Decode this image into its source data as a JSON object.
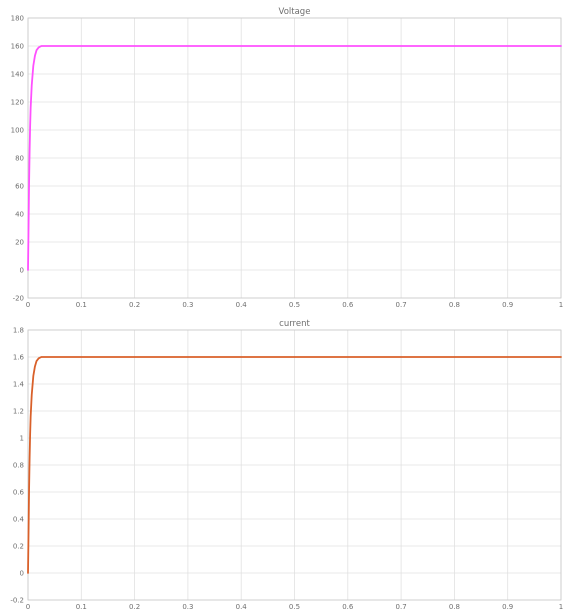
{
  "chart_data": [
    {
      "type": "line",
      "title": "Voltage",
      "xlabel": "",
      "ylabel": "",
      "xlim": [
        0,
        1
      ],
      "ylim": [
        -20,
        180
      ],
      "xticks": [
        0,
        0.1,
        0.2,
        0.3,
        0.4,
        0.5,
        0.6,
        0.7,
        0.8,
        0.9,
        1
      ],
      "xtick_labels": [
        "0",
        "0.1",
        "0.2",
        "0.3",
        "0.4",
        "0.5",
        "0.6",
        "0.7",
        "0.8",
        "0.9",
        "1"
      ],
      "yticks": [
        -20,
        0,
        20,
        40,
        60,
        80,
        100,
        120,
        140,
        160,
        180
      ],
      "ytick_labels": [
        "-20",
        "0",
        "20",
        "40",
        "60",
        "80",
        "100",
        "120",
        "140",
        "160",
        "180"
      ],
      "grid": true,
      "color": "#ff50ff",
      "series": [
        {
          "x": [
            0,
            0.001,
            0.002,
            0.003,
            0.004,
            0.005,
            0.007,
            0.01,
            0.013,
            0.016,
            0.02,
            0.025,
            0.03,
            0.04,
            0.05,
            0.1,
            0.2,
            0.3,
            0.4,
            0.5,
            0.6,
            0.7,
            0.8,
            0.9,
            1
          ],
          "y": [
            0,
            30,
            62,
            85,
            103,
            116,
            132,
            146,
            153,
            157,
            159,
            160,
            160,
            160,
            160,
            160,
            160,
            160,
            160,
            160,
            160,
            160,
            160,
            160,
            160
          ]
        }
      ]
    },
    {
      "type": "line",
      "title": "current",
      "xlabel": "",
      "ylabel": "",
      "xlim": [
        0,
        1
      ],
      "ylim": [
        -0.2,
        1.8
      ],
      "xticks": [
        0,
        0.1,
        0.2,
        0.3,
        0.4,
        0.5,
        0.6,
        0.7,
        0.8,
        0.9,
        1
      ],
      "xtick_labels": [
        "0",
        "0.1",
        "0.2",
        "0.3",
        "0.4",
        "0.5",
        "0.6",
        "0.7",
        "0.8",
        "0.9",
        "1"
      ],
      "yticks": [
        -0.2,
        0,
        0.2,
        0.4,
        0.6,
        0.8,
        1,
        1.2,
        1.4,
        1.6,
        1.8
      ],
      "ytick_labels": [
        "-0.2",
        "0",
        "0.2",
        "0.4",
        "0.6",
        "0.8",
        "1",
        "1.2",
        "1.4",
        "1.6",
        "1.8"
      ],
      "grid": true,
      "color": "#d9602a",
      "series": [
        {
          "x": [
            0,
            0.001,
            0.002,
            0.003,
            0.004,
            0.005,
            0.007,
            0.01,
            0.013,
            0.016,
            0.02,
            0.025,
            0.03,
            0.04,
            0.05,
            0.1,
            0.2,
            0.3,
            0.4,
            0.5,
            0.6,
            0.7,
            0.8,
            0.9,
            1
          ],
          "y": [
            0,
            0.3,
            0.62,
            0.85,
            1.03,
            1.16,
            1.32,
            1.46,
            1.53,
            1.57,
            1.59,
            1.6,
            1.6,
            1.6,
            1.6,
            1.6,
            1.6,
            1.6,
            1.6,
            1.6,
            1.6,
            1.6,
            1.6,
            1.6,
            1.6
          ]
        }
      ]
    }
  ]
}
